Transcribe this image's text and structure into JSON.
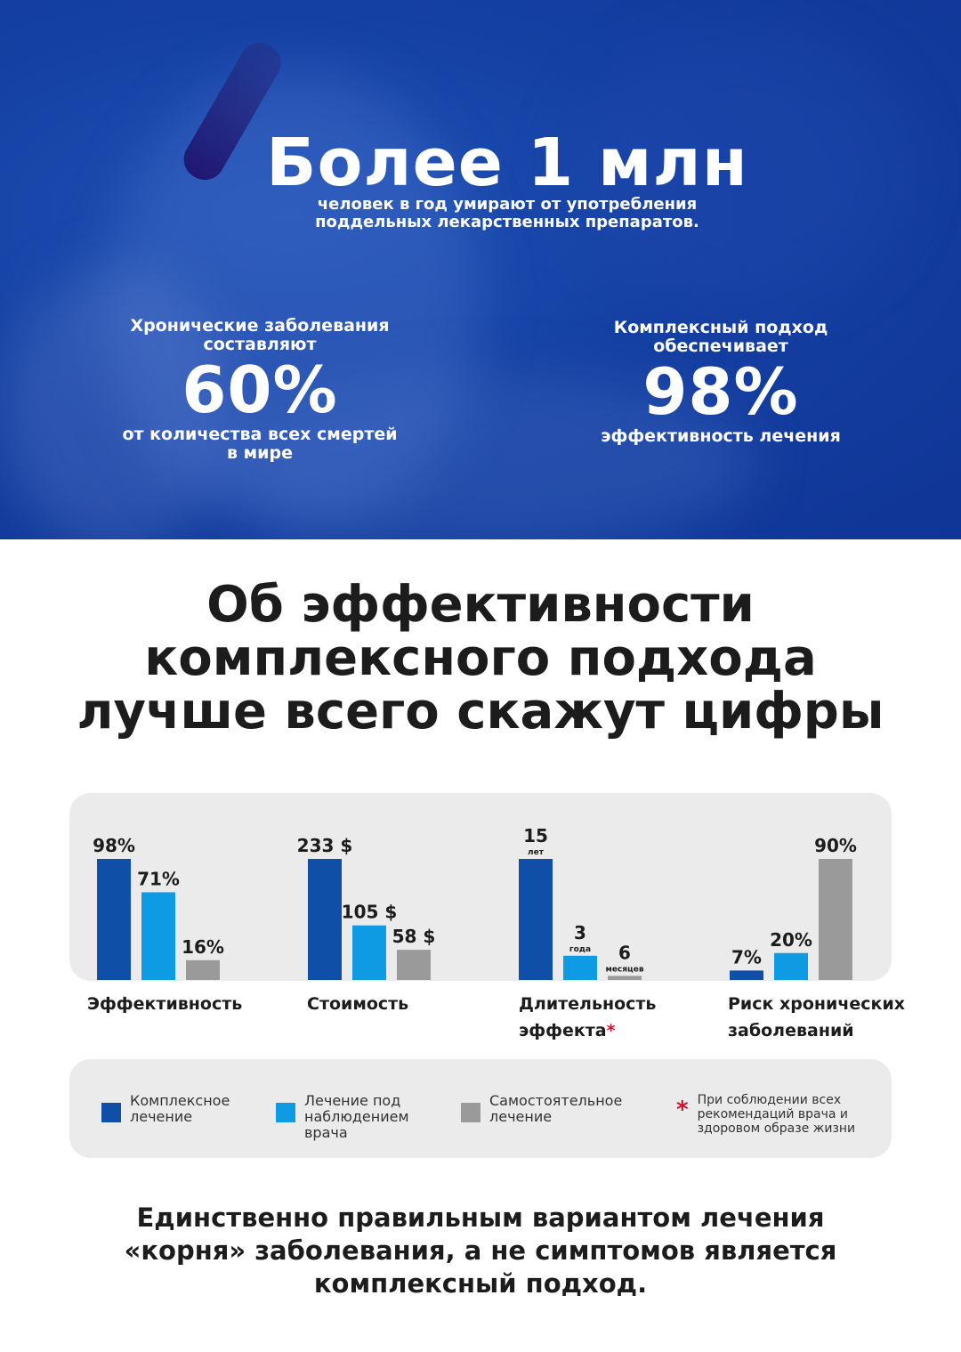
{
  "hero": {
    "title": "Более 1 млн",
    "subtitle_line1": "человек в год умирают от употребления",
    "subtitle_line2": "поддельных лекарственных препаратов.",
    "left": {
      "label_line1": "Хронические заболевания",
      "label_line2": "составляют",
      "value": "60%",
      "caption_line1": "от количества всех смертей",
      "caption_line2": "в мире"
    },
    "right": {
      "label_line1": "Комплексный подход",
      "label_line2": "обеспечивает",
      "value": "98%",
      "caption_line1": "эффективность лечения"
    }
  },
  "headline": {
    "line1": "Об эффективности",
    "line2": "комплексного подхода",
    "line3": "лучше всего скажут цифры"
  },
  "chart_data": {
    "type": "bar",
    "colors": [
      "#0f4fa8",
      "#0e9be3",
      "#9a9a9a"
    ],
    "series": [
      {
        "name": "Комплексное лечение"
      },
      {
        "name": "Лечение под наблюдением врача"
      },
      {
        "name": "Самостоятельное лечение"
      }
    ],
    "groups": [
      {
        "category_line1": "Эффективность",
        "category_line2": "",
        "values": [
          98,
          71,
          16
        ],
        "labels": [
          "98%",
          "71%",
          "16%"
        ],
        "sublabels": [
          "",
          "",
          ""
        ]
      },
      {
        "category_line1": "Стоимость",
        "category_line2": "",
        "values": [
          233,
          105,
          58
        ],
        "labels": [
          "233 $",
          "105 $",
          "58 $"
        ],
        "sublabels": [
          "",
          "",
          ""
        ]
      },
      {
        "category_line1": "Длительность",
        "category_line2": "эффекта",
        "category_mark": "*",
        "values": [
          15,
          3,
          0.5
        ],
        "labels": [
          "15",
          "3",
          "6"
        ],
        "sublabels": [
          "лет",
          "года",
          "месяцев"
        ]
      },
      {
        "category_line1": "Риск хронических",
        "category_line2": "заболеваний",
        "values": [
          7,
          20,
          90
        ],
        "labels": [
          "7%",
          "20%",
          "90%"
        ],
        "sublabels": [
          "",
          "",
          ""
        ]
      }
    ]
  },
  "legend": {
    "item1": "Комплексное\nлечение",
    "item2": "Лечение под\nнаблюдением\nврача",
    "item3": "Самостоятельное\nлечение",
    "note_mark": "*",
    "note": "При соблюдении всех\nрекомендаций врача и\nздоровом образе жизни"
  },
  "footer": {
    "line1": "Единственно правильным вариантом лечения",
    "line2": "«корня» заболевания, а не симптомов является",
    "line3": "комплексный подход."
  }
}
